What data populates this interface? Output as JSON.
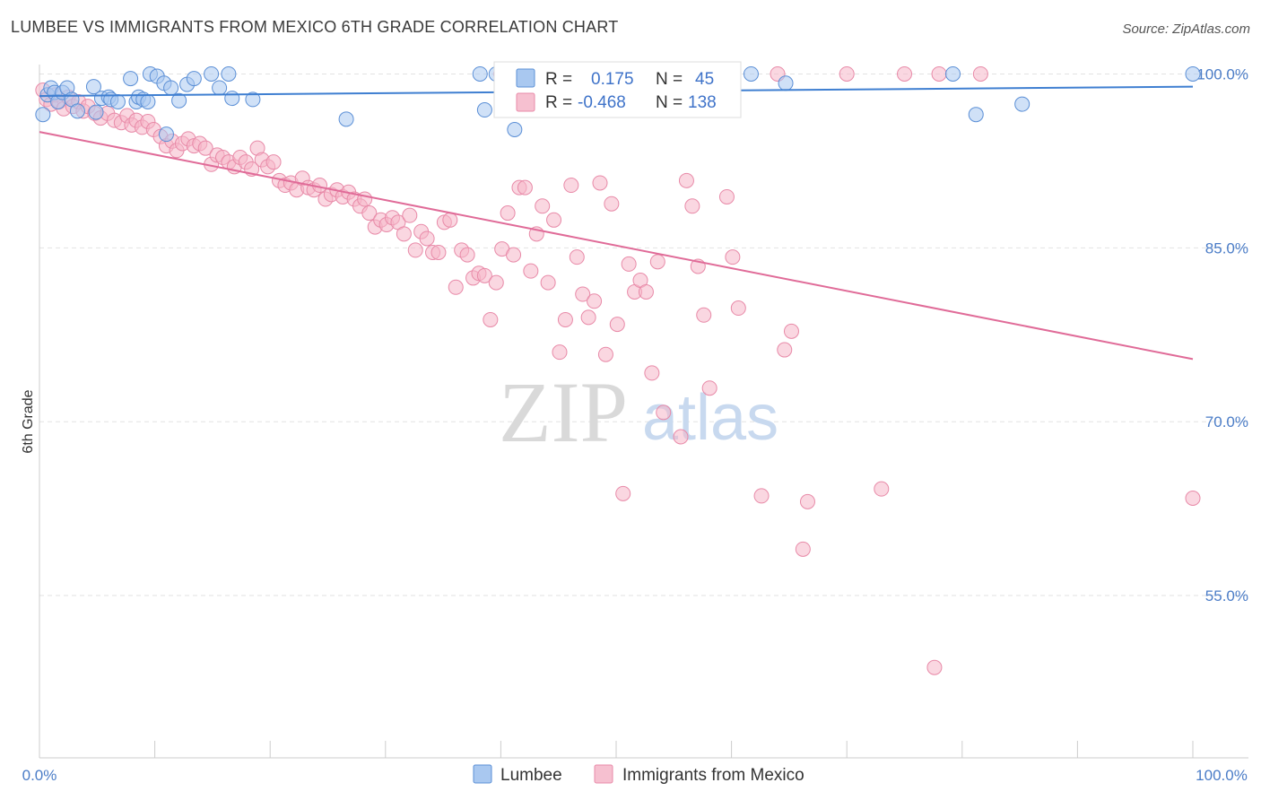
{
  "title": "LUMBEE VS IMMIGRANTS FROM MEXICO 6TH GRADE CORRELATION CHART",
  "source": "Source: ZipAtlas.com",
  "watermark": {
    "zip": "ZIP",
    "atlas": "atlas"
  },
  "colors": {
    "lumbee_fill": "#a9c8f0",
    "lumbee_stroke": "#5b8fd6",
    "lumbee_line": "#3f7fd1",
    "mexico_fill": "#f6b6c8",
    "mexico_stroke": "#e88aa8",
    "mexico_line": "#e06b98",
    "tick_label": "#4a7cc7",
    "grid": "#e2e2e2"
  },
  "legend": {
    "rows": [
      {
        "r_label": "R =",
        "r_value": "0.175",
        "n_label": "N =",
        "n_value": "45"
      },
      {
        "r_label": "R =",
        "r_value": "-0.468",
        "n_label": "N =",
        "n_value": "138"
      }
    ]
  },
  "bottom_legend": {
    "items": [
      "Lumbee",
      "Immigrants from Mexico"
    ]
  },
  "chart_data": {
    "type": "scatter",
    "title": "LUMBEE VS IMMIGRANTS FROM MEXICO 6TH GRADE CORRELATION CHART",
    "xlabel": "",
    "ylabel": "6th Grade",
    "xlim": [
      0,
      100
    ],
    "ylim": [
      41,
      100.5
    ],
    "x_tick_labels": [
      "0.0%",
      "100.0%"
    ],
    "y_ticks": [
      55,
      70,
      85,
      100
    ],
    "y_tick_labels": [
      "55.0%",
      "70.0%",
      "85.0%",
      "100.0%"
    ],
    "grid": true,
    "series": [
      {
        "name": "Lumbee",
        "r": 0.175,
        "n": 45,
        "trend": {
          "x": [
            0,
            100
          ],
          "y": [
            98.1,
            98.9
          ]
        },
        "points": [
          [
            0.3,
            96.5
          ],
          [
            0.7,
            98.2
          ],
          [
            1.0,
            98.8
          ],
          [
            1.3,
            98.4
          ],
          [
            1.6,
            97.6
          ],
          [
            2.0,
            98.4
          ],
          [
            2.4,
            98.8
          ],
          [
            2.8,
            97.8
          ],
          [
            3.3,
            96.8
          ],
          [
            4.7,
            98.9
          ],
          [
            4.9,
            96.7
          ],
          [
            5.4,
            97.9
          ],
          [
            6.0,
            98.0
          ],
          [
            6.2,
            97.8
          ],
          [
            6.8,
            97.6
          ],
          [
            7.9,
            99.6
          ],
          [
            8.4,
            97.6
          ],
          [
            8.6,
            98.0
          ],
          [
            9.0,
            97.8
          ],
          [
            9.4,
            97.6
          ],
          [
            9.6,
            100
          ],
          [
            10.2,
            99.8
          ],
          [
            10.8,
            99.2
          ],
          [
            11.0,
            94.8
          ],
          [
            11.4,
            98.8
          ],
          [
            12.1,
            97.7
          ],
          [
            12.8,
            99.1
          ],
          [
            13.4,
            99.6
          ],
          [
            14.9,
            100
          ],
          [
            15.6,
            98.8
          ],
          [
            16.4,
            100
          ],
          [
            16.7,
            97.9
          ],
          [
            18.5,
            97.8
          ],
          [
            26.6,
            96.1
          ],
          [
            38.2,
            100
          ],
          [
            38.6,
            96.9
          ],
          [
            39.6,
            100
          ],
          [
            41.2,
            95.2
          ],
          [
            45.9,
            100
          ],
          [
            61.7,
            100
          ],
          [
            64.7,
            99.2
          ],
          [
            79.2,
            100
          ],
          [
            81.2,
            96.5
          ],
          [
            85.2,
            97.4
          ],
          [
            100,
            100
          ]
        ]
      },
      {
        "name": "Immigrants from Mexico",
        "r": -0.468,
        "n": 138,
        "trend": {
          "x": [
            0,
            100
          ],
          "y": [
            95.0,
            75.4
          ]
        },
        "points": [
          [
            0.3,
            98.6
          ],
          [
            0.6,
            97.8
          ],
          [
            1.0,
            97.4
          ],
          [
            1.4,
            98.2
          ],
          [
            1.7,
            97.6
          ],
          [
            2.1,
            97.0
          ],
          [
            2.5,
            98.0
          ],
          [
            2.9,
            97.2
          ],
          [
            3.4,
            97.6
          ],
          [
            3.8,
            96.8
          ],
          [
            4.2,
            97.2
          ],
          [
            4.8,
            96.6
          ],
          [
            5.3,
            96.2
          ],
          [
            5.9,
            96.6
          ],
          [
            6.5,
            96.0
          ],
          [
            7.1,
            95.8
          ],
          [
            7.6,
            96.4
          ],
          [
            8.0,
            95.6
          ],
          [
            8.4,
            96.0
          ],
          [
            8.9,
            95.4
          ],
          [
            9.4,
            95.9
          ],
          [
            9.9,
            95.2
          ],
          [
            10.5,
            94.6
          ],
          [
            11.0,
            93.8
          ],
          [
            11.5,
            94.2
          ],
          [
            11.9,
            93.4
          ],
          [
            12.4,
            94.0
          ],
          [
            12.9,
            94.4
          ],
          [
            13.4,
            93.8
          ],
          [
            13.9,
            94.0
          ],
          [
            14.4,
            93.6
          ],
          [
            14.9,
            92.2
          ],
          [
            15.4,
            93.0
          ],
          [
            15.9,
            92.8
          ],
          [
            16.4,
            92.4
          ],
          [
            16.9,
            92.0
          ],
          [
            17.4,
            92.8
          ],
          [
            17.9,
            92.4
          ],
          [
            18.4,
            91.8
          ],
          [
            18.9,
            93.6
          ],
          [
            19.3,
            92.6
          ],
          [
            19.8,
            92.0
          ],
          [
            20.3,
            92.4
          ],
          [
            20.8,
            90.8
          ],
          [
            21.3,
            90.4
          ],
          [
            21.8,
            90.6
          ],
          [
            22.3,
            90.0
          ],
          [
            22.8,
            91.0
          ],
          [
            23.3,
            90.2
          ],
          [
            23.8,
            90.0
          ],
          [
            24.3,
            90.4
          ],
          [
            24.8,
            89.2
          ],
          [
            25.3,
            89.6
          ],
          [
            25.8,
            90.0
          ],
          [
            26.3,
            89.4
          ],
          [
            26.8,
            89.8
          ],
          [
            27.3,
            89.2
          ],
          [
            27.8,
            88.6
          ],
          [
            28.2,
            89.2
          ],
          [
            28.6,
            88.0
          ],
          [
            29.1,
            86.8
          ],
          [
            29.6,
            87.4
          ],
          [
            30.1,
            87.0
          ],
          [
            30.6,
            87.6
          ],
          [
            31.1,
            87.2
          ],
          [
            31.6,
            86.2
          ],
          [
            32.1,
            87.8
          ],
          [
            32.6,
            84.8
          ],
          [
            33.1,
            86.4
          ],
          [
            33.6,
            85.8
          ],
          [
            34.1,
            84.6
          ],
          [
            34.6,
            84.6
          ],
          [
            35.1,
            87.2
          ],
          [
            35.6,
            87.4
          ],
          [
            36.1,
            81.6
          ],
          [
            36.6,
            84.8
          ],
          [
            37.1,
            84.4
          ],
          [
            37.6,
            82.4
          ],
          [
            38.1,
            82.8
          ],
          [
            38.6,
            82.6
          ],
          [
            39.1,
            78.8
          ],
          [
            39.6,
            82.0
          ],
          [
            40.1,
            84.9
          ],
          [
            40.6,
            88.0
          ],
          [
            41.1,
            84.4
          ],
          [
            41.6,
            90.2
          ],
          [
            42.1,
            90.2
          ],
          [
            42.6,
            83.0
          ],
          [
            43.1,
            86.2
          ],
          [
            43.6,
            88.6
          ],
          [
            44.1,
            82.0
          ],
          [
            44.6,
            87.4
          ],
          [
            45.1,
            76.0
          ],
          [
            45.6,
            78.8
          ],
          [
            46.1,
            90.4
          ],
          [
            46.6,
            84.2
          ],
          [
            47.1,
            81.0
          ],
          [
            47.6,
            79.0
          ],
          [
            48.1,
            80.4
          ],
          [
            48.6,
            90.6
          ],
          [
            49.1,
            75.8
          ],
          [
            49.6,
            88.8
          ],
          [
            50.1,
            78.4
          ],
          [
            50.6,
            63.8
          ],
          [
            51.1,
            83.6
          ],
          [
            51.6,
            81.2
          ],
          [
            52.1,
            82.2
          ],
          [
            52.6,
            81.2
          ],
          [
            53.1,
            74.2
          ],
          [
            53.6,
            83.8
          ],
          [
            54.1,
            70.8
          ],
          [
            55.6,
            68.7
          ],
          [
            56.1,
            90.8
          ],
          [
            56.6,
            88.6
          ],
          [
            57.1,
            83.4
          ],
          [
            57.6,
            79.2
          ],
          [
            58.1,
            72.9
          ],
          [
            59.6,
            89.4
          ],
          [
            60.1,
            84.2
          ],
          [
            60.6,
            79.8
          ],
          [
            62.6,
            63.6
          ],
          [
            64.6,
            76.2
          ],
          [
            65.2,
            77.8
          ],
          [
            66.6,
            63.1
          ],
          [
            66.2,
            59.0
          ],
          [
            73.0,
            64.2
          ],
          [
            81.6,
            100
          ],
          [
            77.6,
            48.8
          ],
          [
            100,
            63.4
          ],
          [
            40.0,
            100
          ],
          [
            48.0,
            100
          ],
          [
            58.0,
            100
          ],
          [
            60.0,
            100
          ],
          [
            64.0,
            100
          ],
          [
            70.0,
            100
          ],
          [
            75.0,
            100
          ],
          [
            78.0,
            100
          ]
        ]
      }
    ]
  }
}
